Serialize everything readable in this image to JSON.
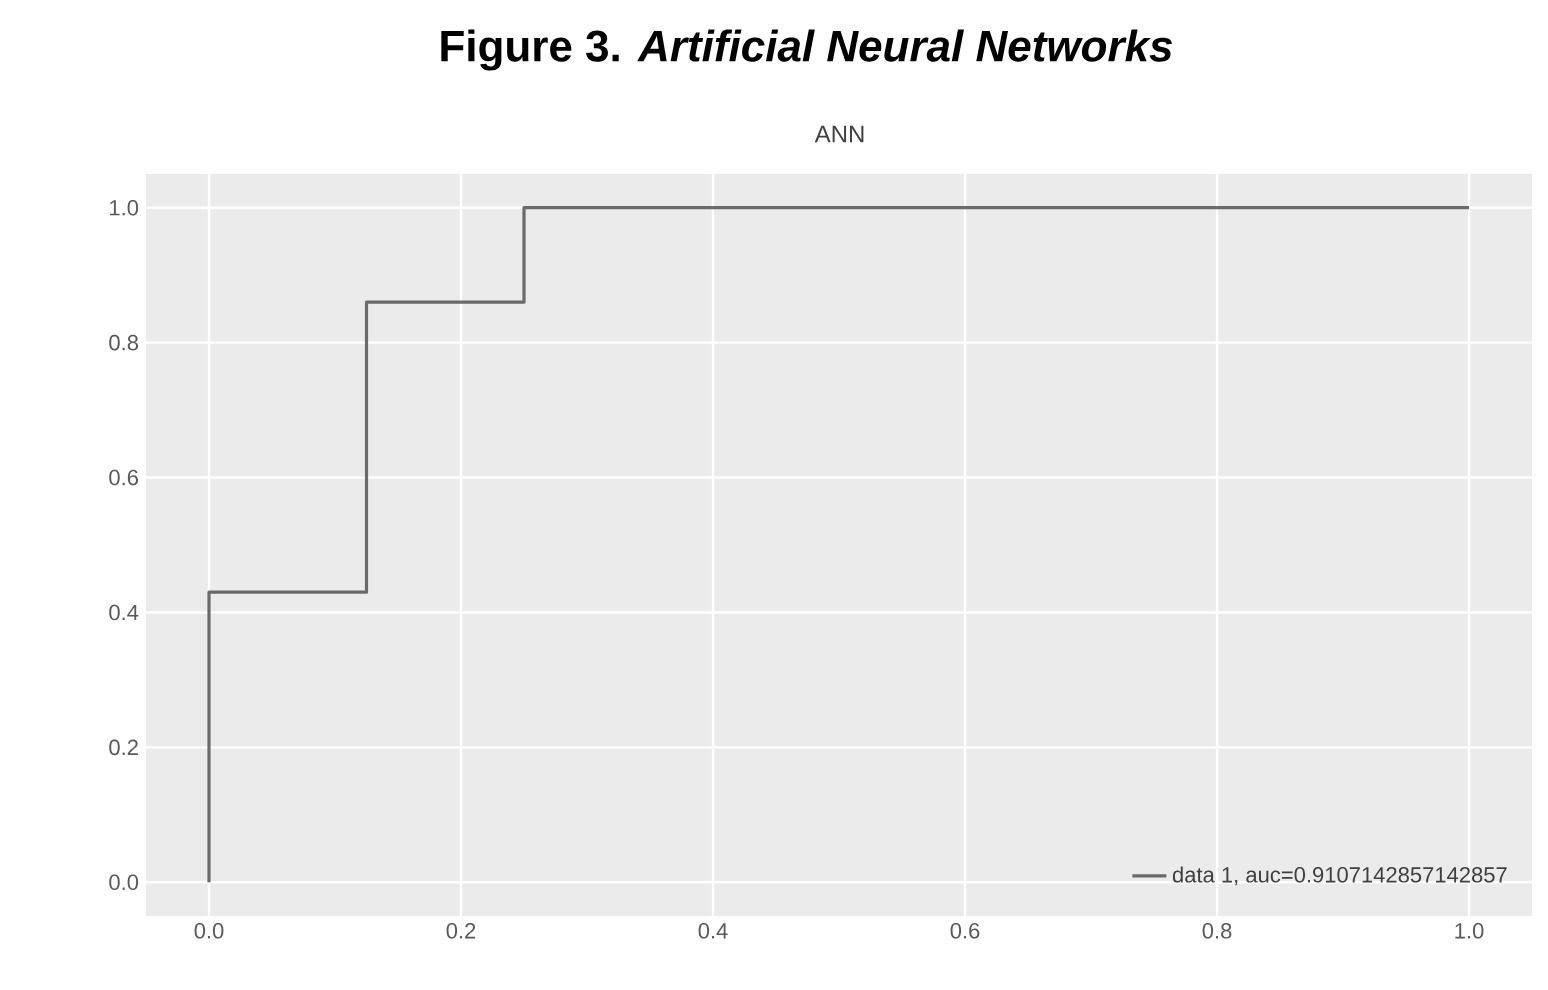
{
  "chart_data": {
    "type": "line",
    "title": "Figure 3. *Artificial Neural Networks*",
    "subtitle": "ANN",
    "x": [
      0,
      0,
      0.125,
      0.125,
      0.25,
      0.25,
      1
    ],
    "series": [
      {
        "name": "data 1, auc=0.9107142857142857",
        "color": "#6a6a6a",
        "values": [
          0,
          0.43,
          0.43,
          0.86,
          0.86,
          1,
          1
        ]
      }
    ],
    "xlim": [
      -0.05,
      1.05
    ],
    "ylim": [
      -0.05,
      1.05
    ],
    "xticks": [
      {
        "value": 0,
        "label": "0.0"
      },
      0.2,
      0.4,
      0.6,
      0.8,
      {
        "value": 1,
        "label": "1.0"
      }
    ],
    "yticks": [
      {
        "value": 0,
        "label": "0.0"
      },
      0.2,
      0.4,
      0.6,
      0.8,
      {
        "value": 1,
        "label": "1.0"
      }
    ],
    "grid": true,
    "legend": "bottom right",
    "marker": "none",
    "line_style": "solid"
  }
}
